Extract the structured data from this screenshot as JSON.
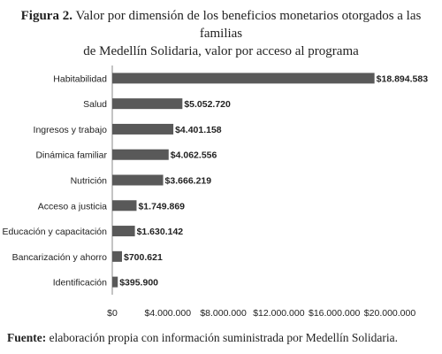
{
  "figure": {
    "label": "Figura 2.",
    "title_line1": "Valor por dimensión de los beneficios monetarios otorgados a las familias",
    "title_line2": "de Medellín Solidaria, valor por acceso al programa"
  },
  "source": {
    "label": "Fuente:",
    "text": "elaboración propia con información suministrada por Medellín Solidaria."
  },
  "chart_data": {
    "type": "bar",
    "orientation": "horizontal",
    "categories": [
      "Habitabilidad",
      "Salud",
      "Ingresos y trabajo",
      "Dinámica familiar",
      "Nutrición",
      "Acceso a justicia",
      "Educación y capacitación",
      "Bancarización y ahorro",
      "Identificación"
    ],
    "values": [
      18894583,
      5052720,
      4401158,
      4062556,
      3666219,
      1749869,
      1630142,
      700621,
      395900
    ],
    "value_labels": [
      "$18.894.583",
      "$5.052.720",
      "$4.401.158",
      "$4.062.556",
      "$3.666.219",
      "$1.749.869",
      "$1.630.142",
      "$700.621",
      "$395.900"
    ],
    "xlim": [
      0,
      20000000
    ],
    "xticks": [
      0,
      4000000,
      8000000,
      12000000,
      16000000,
      20000000
    ],
    "xtick_labels": [
      "$0",
      "$4.000.000",
      "$8.000.000",
      "$12.000.000",
      "$16.000.000",
      "$20.000.000"
    ],
    "bar_color": "#595959",
    "grid": false,
    "legend": "none"
  }
}
